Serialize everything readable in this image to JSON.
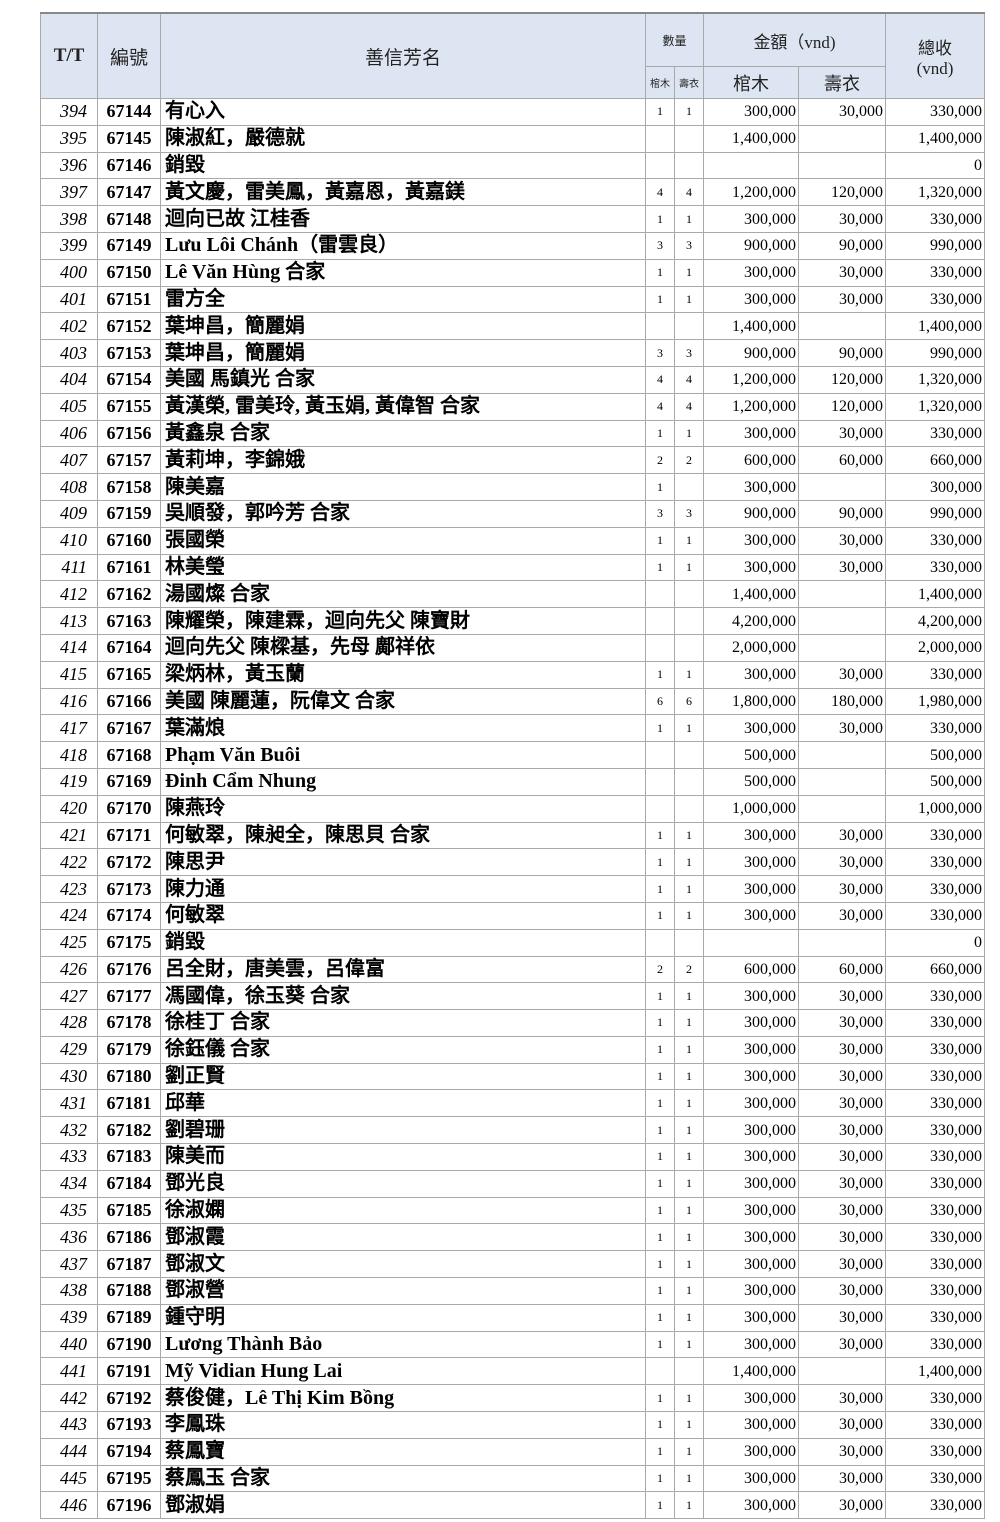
{
  "header": {
    "tt": "T/T",
    "id": "編號",
    "name": "善信芳名",
    "qty": "數量",
    "amount": "金額（vnd)",
    "total": "總收\n(vnd)",
    "coffin": "棺木",
    "clothes": "壽衣"
  },
  "rows": [
    [
      "394",
      "67144",
      "有心入",
      "1",
      "1",
      "300,000",
      "30,000",
      "330,000"
    ],
    [
      "395",
      "67145",
      "陳淑紅，嚴德就",
      "",
      "",
      "1,400,000",
      "",
      "1,400,000"
    ],
    [
      "396",
      "67146",
      "銷毀",
      "",
      "",
      "",
      "",
      "0"
    ],
    [
      "397",
      "67147",
      "黃文慶，雷美鳳，黃嘉恩，黃嘉鎂",
      "4",
      "4",
      "1,200,000",
      "120,000",
      "1,320,000"
    ],
    [
      "398",
      "67148",
      "迴向已故 江桂香",
      "1",
      "1",
      "300,000",
      "30,000",
      "330,000"
    ],
    [
      "399",
      "67149",
      "Lưu Lôi Chánh（雷雲良）",
      "3",
      "3",
      "900,000",
      "90,000",
      "990,000"
    ],
    [
      "400",
      "67150",
      "Lê Văn Hùng 合家",
      "1",
      "1",
      "300,000",
      "30,000",
      "330,000"
    ],
    [
      "401",
      "67151",
      "雷方全",
      "1",
      "1",
      "300,000",
      "30,000",
      "330,000"
    ],
    [
      "402",
      "67152",
      "葉坤昌，簡麗娟",
      "",
      "",
      "1,400,000",
      "",
      "1,400,000"
    ],
    [
      "403",
      "67153",
      "葉坤昌，簡麗娟",
      "3",
      "3",
      "900,000",
      "90,000",
      "990,000"
    ],
    [
      "404",
      "67154",
      "美國 馬鎮光 合家",
      "4",
      "4",
      "1,200,000",
      "120,000",
      "1,320,000"
    ],
    [
      "405",
      "67155",
      "黃漢榮, 雷美玲, 黃玉娟, 黃偉智 合家",
      "4",
      "4",
      "1,200,000",
      "120,000",
      "1,320,000"
    ],
    [
      "406",
      "67156",
      "黃鑫泉 合家",
      "1",
      "1",
      "300,000",
      "30,000",
      "330,000"
    ],
    [
      "407",
      "67157",
      "黃莉坤，李錦娥",
      "2",
      "2",
      "600,000",
      "60,000",
      "660,000"
    ],
    [
      "408",
      "67158",
      "陳美嘉",
      "1",
      "",
      "300,000",
      "",
      "300,000"
    ],
    [
      "409",
      "67159",
      "吳順發，郭吟芳 合家",
      "3",
      "3",
      "900,000",
      "90,000",
      "990,000"
    ],
    [
      "410",
      "67160",
      "張國榮",
      "1",
      "1",
      "300,000",
      "30,000",
      "330,000"
    ],
    [
      "411",
      "67161",
      "林美瑩",
      "1",
      "1",
      "300,000",
      "30,000",
      "330,000"
    ],
    [
      "412",
      "67162",
      "湯國燦 合家",
      "",
      "",
      "1,400,000",
      "",
      "1,400,000"
    ],
    [
      "413",
      "67163",
      "陳耀榮，陳建霖，迴向先父 陳寶財",
      "",
      "",
      "4,200,000",
      "",
      "4,200,000"
    ],
    [
      "414",
      "67164",
      "迴向先父 陳樑基，先母 鄺祥依",
      "",
      "",
      "2,000,000",
      "",
      "2,000,000"
    ],
    [
      "415",
      "67165",
      "梁炳林，黃玉蘭",
      "1",
      "1",
      "300,000",
      "30,000",
      "330,000"
    ],
    [
      "416",
      "67166",
      "美國 陳麗蓮，阮偉文 合家",
      "6",
      "6",
      "1,800,000",
      "180,000",
      "1,980,000"
    ],
    [
      "417",
      "67167",
      "葉滿烺",
      "1",
      "1",
      "300,000",
      "30,000",
      "330,000"
    ],
    [
      "418",
      "67168",
      "Phạm Văn Buôi",
      "",
      "",
      "500,000",
      "",
      "500,000"
    ],
    [
      "419",
      "67169",
      "Đinh Cẩm Nhung",
      "",
      "",
      "500,000",
      "",
      "500,000"
    ],
    [
      "420",
      "67170",
      "陳燕玲",
      "",
      "",
      "1,000,000",
      "",
      "1,000,000"
    ],
    [
      "421",
      "67171",
      "何敏翠，陳昶全，陳思貝 合家",
      "1",
      "1",
      "300,000",
      "30,000",
      "330,000"
    ],
    [
      "422",
      "67172",
      "陳思尹",
      "1",
      "1",
      "300,000",
      "30,000",
      "330,000"
    ],
    [
      "423",
      "67173",
      "陳力通",
      "1",
      "1",
      "300,000",
      "30,000",
      "330,000"
    ],
    [
      "424",
      "67174",
      "何敏翠",
      "1",
      "1",
      "300,000",
      "30,000",
      "330,000"
    ],
    [
      "425",
      "67175",
      "銷毀",
      "",
      "",
      "",
      "",
      "0"
    ],
    [
      "426",
      "67176",
      "呂全財，唐美雲，呂偉富",
      "2",
      "2",
      "600,000",
      "60,000",
      "660,000"
    ],
    [
      "427",
      "67177",
      "馮國偉，徐玉葵 合家",
      "1",
      "1",
      "300,000",
      "30,000",
      "330,000"
    ],
    [
      "428",
      "67178",
      "徐桂丁 合家",
      "1",
      "1",
      "300,000",
      "30,000",
      "330,000"
    ],
    [
      "429",
      "67179",
      "徐鈺儀 合家",
      "1",
      "1",
      "300,000",
      "30,000",
      "330,000"
    ],
    [
      "430",
      "67180",
      "劉正賢",
      "1",
      "1",
      "300,000",
      "30,000",
      "330,000"
    ],
    [
      "431",
      "67181",
      "邱華",
      "1",
      "1",
      "300,000",
      "30,000",
      "330,000"
    ],
    [
      "432",
      "67182",
      "劉碧珊",
      "1",
      "1",
      "300,000",
      "30,000",
      "330,000"
    ],
    [
      "433",
      "67183",
      "陳美而",
      "1",
      "1",
      "300,000",
      "30,000",
      "330,000"
    ],
    [
      "434",
      "67184",
      "鄧光良",
      "1",
      "1",
      "300,000",
      "30,000",
      "330,000"
    ],
    [
      "435",
      "67185",
      "徐淑嫻",
      "1",
      "1",
      "300,000",
      "30,000",
      "330,000"
    ],
    [
      "436",
      "67186",
      "鄧淑霞",
      "1",
      "1",
      "300,000",
      "30,000",
      "330,000"
    ],
    [
      "437",
      "67187",
      "鄧淑文",
      "1",
      "1",
      "300,000",
      "30,000",
      "330,000"
    ],
    [
      "438",
      "67188",
      "鄧淑營",
      "1",
      "1",
      "300,000",
      "30,000",
      "330,000"
    ],
    [
      "439",
      "67189",
      "鍾守明",
      "1",
      "1",
      "300,000",
      "30,000",
      "330,000"
    ],
    [
      "440",
      "67190",
      "Lương Thành Bảo",
      "1",
      "1",
      "300,000",
      "30,000",
      "330,000"
    ],
    [
      "441",
      "67191",
      "Mỹ  Vidian Hung Lai",
      "",
      "",
      "1,400,000",
      "",
      "1,400,000"
    ],
    [
      "442",
      "67192",
      "蔡俊健，Lê Thị Kim Bồng",
      "1",
      "1",
      "300,000",
      "30,000",
      "330,000"
    ],
    [
      "443",
      "67193",
      "李鳳珠",
      "1",
      "1",
      "300,000",
      "30,000",
      "330,000"
    ],
    [
      "444",
      "67194",
      "蔡鳳寶",
      "1",
      "1",
      "300,000",
      "30,000",
      "330,000"
    ],
    [
      "445",
      "67195",
      "蔡鳳玉 合家",
      "1",
      "1",
      "300,000",
      "30,000",
      "330,000"
    ],
    [
      "446",
      "67196",
      "鄧淑娟",
      "1",
      "1",
      "300,000",
      "30,000",
      "330,000"
    ]
  ]
}
